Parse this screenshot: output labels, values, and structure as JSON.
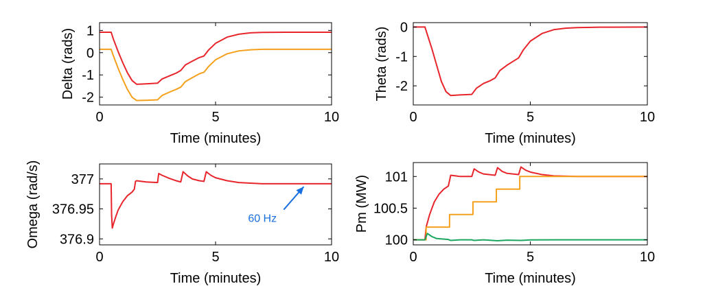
{
  "colors": {
    "red": "#e8242b",
    "orange": "#f5a01a",
    "green": "#1aa65e",
    "blue": "#1a6fe0",
    "axis": "#000000"
  },
  "chart_data": [
    {
      "type": "line",
      "xlabel": "Time (minutes)",
      "ylabel": "Delta (rads)",
      "xlim": [
        0,
        10
      ],
      "ylim": [
        -2.35,
        1.35
      ],
      "xticks": [
        0,
        5,
        10
      ],
      "yticks": [
        -2,
        -1,
        0,
        1
      ],
      "series": [
        {
          "color": "red",
          "points": [
            [
              0,
              0.92
            ],
            [
              0.5,
              0.92
            ],
            [
              0.6,
              0.6
            ],
            [
              0.8,
              0.05
            ],
            [
              1.0,
              -0.45
            ],
            [
              1.2,
              -0.9
            ],
            [
              1.4,
              -1.25
            ],
            [
              1.6,
              -1.42
            ],
            [
              2.0,
              -1.4
            ],
            [
              2.5,
              -1.37
            ],
            [
              2.7,
              -1.18
            ],
            [
              3.0,
              -1.05
            ],
            [
              3.3,
              -0.92
            ],
            [
              3.5,
              -0.8
            ],
            [
              3.7,
              -0.55
            ],
            [
              4.0,
              -0.38
            ],
            [
              4.3,
              -0.22
            ],
            [
              4.5,
              -0.15
            ],
            [
              4.7,
              0.12
            ],
            [
              5.0,
              0.42
            ],
            [
              5.5,
              0.7
            ],
            [
              6.0,
              0.83
            ],
            [
              6.5,
              0.89
            ],
            [
              7.0,
              0.91
            ],
            [
              8.0,
              0.92
            ],
            [
              10.0,
              0.92
            ]
          ]
        },
        {
          "color": "orange",
          "points": [
            [
              0,
              0.15
            ],
            [
              0.5,
              0.15
            ],
            [
              0.6,
              -0.15
            ],
            [
              0.8,
              -0.7
            ],
            [
              1.0,
              -1.2
            ],
            [
              1.2,
              -1.65
            ],
            [
              1.4,
              -2.0
            ],
            [
              1.6,
              -2.15
            ],
            [
              2.0,
              -2.14
            ],
            [
              2.5,
              -2.12
            ],
            [
              2.7,
              -1.92
            ],
            [
              3.0,
              -1.78
            ],
            [
              3.3,
              -1.65
            ],
            [
              3.5,
              -1.55
            ],
            [
              3.7,
              -1.3
            ],
            [
              4.0,
              -1.12
            ],
            [
              4.3,
              -0.95
            ],
            [
              4.5,
              -0.88
            ],
            [
              4.7,
              -0.62
            ],
            [
              5.0,
              -0.32
            ],
            [
              5.5,
              -0.05
            ],
            [
              6.0,
              0.08
            ],
            [
              6.5,
              0.13
            ],
            [
              7.0,
              0.15
            ],
            [
              8.0,
              0.15
            ],
            [
              10.0,
              0.15
            ]
          ]
        }
      ]
    },
    {
      "type": "line",
      "xlabel": "Time (minutes)",
      "ylabel": "Theta (rads)",
      "xlim": [
        0,
        10
      ],
      "ylim": [
        -2.65,
        0.15
      ],
      "xticks": [
        0,
        5,
        10
      ],
      "yticks": [
        -2,
        -1,
        0
      ],
      "series": [
        {
          "color": "red",
          "points": [
            [
              0,
              0
            ],
            [
              0.5,
              0
            ],
            [
              0.6,
              -0.25
            ],
            [
              0.8,
              -0.75
            ],
            [
              1.0,
              -1.3
            ],
            [
              1.2,
              -1.85
            ],
            [
              1.4,
              -2.2
            ],
            [
              1.6,
              -2.33
            ],
            [
              2.0,
              -2.31
            ],
            [
              2.5,
              -2.29
            ],
            [
              2.7,
              -2.08
            ],
            [
              3.0,
              -1.92
            ],
            [
              3.3,
              -1.82
            ],
            [
              3.5,
              -1.73
            ],
            [
              3.7,
              -1.48
            ],
            [
              4.0,
              -1.3
            ],
            [
              4.3,
              -1.15
            ],
            [
              4.5,
              -1.05
            ],
            [
              4.7,
              -0.78
            ],
            [
              5.0,
              -0.48
            ],
            [
              5.5,
              -0.22
            ],
            [
              6.0,
              -0.09
            ],
            [
              6.5,
              -0.04
            ],
            [
              7.0,
              -0.02
            ],
            [
              8.0,
              -0.005
            ],
            [
              10.0,
              0
            ]
          ]
        }
      ]
    },
    {
      "type": "line",
      "xlabel": "Time (minutes)",
      "ylabel": "Omega (rad/s)",
      "xlim": [
        0,
        10
      ],
      "ylim": [
        376.89,
        377.025
      ],
      "xticks": [
        0,
        5,
        10
      ],
      "yticks": [
        376.9,
        376.95,
        377
      ],
      "ytick_labels": [
        "376.9",
        "376.95",
        "377"
      ],
      "annotation": {
        "text": "60 Hz",
        "x": 6.4,
        "y": 376.935,
        "arrow_to": [
          8.8,
          376.987
        ]
      },
      "series": [
        {
          "color": "red",
          "points": [
            [
              0,
              376.992
            ],
            [
              0.5,
              376.992
            ],
            [
              0.52,
              376.94
            ],
            [
              0.55,
              376.918
            ],
            [
              0.6,
              376.925
            ],
            [
              0.7,
              376.937
            ],
            [
              0.8,
              376.948
            ],
            [
              1.0,
              376.962
            ],
            [
              1.2,
              376.972
            ],
            [
              1.4,
              376.978
            ],
            [
              1.5,
              376.983
            ],
            [
              1.55,
              376.996
            ],
            [
              1.6,
              376.997
            ],
            [
              2.0,
              376.995
            ],
            [
              2.5,
              376.994
            ],
            [
              2.55,
              377.009
            ],
            [
              2.7,
              377.006
            ],
            [
              3.0,
              377.001
            ],
            [
              3.3,
              376.997
            ],
            [
              3.5,
              376.995
            ],
            [
              3.6,
              377.012
            ],
            [
              3.8,
              377.005
            ],
            [
              4.0,
              377.0
            ],
            [
              4.3,
              376.997
            ],
            [
              4.5,
              376.996
            ],
            [
              4.6,
              377.012
            ],
            [
              4.8,
              377.006
            ],
            [
              5.0,
              377.002
            ],
            [
              5.5,
              376.997
            ],
            [
              6.0,
              376.994
            ],
            [
              6.5,
              376.993
            ],
            [
              7.0,
              376.992
            ],
            [
              8.0,
              376.992
            ],
            [
              10.0,
              376.992
            ]
          ]
        }
      ]
    },
    {
      "type": "line",
      "xlabel": "Time (minutes)",
      "ylabel": "Pm (MW)",
      "xlim": [
        0,
        10
      ],
      "ylim": [
        99.92,
        101.22
      ],
      "xticks": [
        0,
        5,
        10
      ],
      "yticks": [
        100,
        100.5,
        101
      ],
      "ytick_labels": [
        "100",
        "100.5",
        "101"
      ],
      "series": [
        {
          "color": "red",
          "points": [
            [
              0,
              100.0
            ],
            [
              0.5,
              100.0
            ],
            [
              0.55,
              100.2
            ],
            [
              0.7,
              100.4
            ],
            [
              0.9,
              100.6
            ],
            [
              1.1,
              100.72
            ],
            [
              1.3,
              100.8
            ],
            [
              1.5,
              100.85
            ],
            [
              1.6,
              101.02
            ],
            [
              1.8,
              101.01
            ],
            [
              2.0,
              101.0
            ],
            [
              2.5,
              101.0
            ],
            [
              2.6,
              101.12
            ],
            [
              2.8,
              101.07
            ],
            [
              3.0,
              101.04
            ],
            [
              3.5,
              101.02
            ],
            [
              3.6,
              101.14
            ],
            [
              3.8,
              101.08
            ],
            [
              4.0,
              101.05
            ],
            [
              4.5,
              101.03
            ],
            [
              4.6,
              101.15
            ],
            [
              4.8,
              101.1
            ],
            [
              5.0,
              101.07
            ],
            [
              5.5,
              101.03
            ],
            [
              6.0,
              101.01
            ],
            [
              7.0,
              101.0
            ],
            [
              10.0,
              101.0
            ]
          ]
        },
        {
          "color": "orange",
          "points": [
            [
              0,
              100.0
            ],
            [
              0.55,
              100.0
            ],
            [
              0.55,
              100.2
            ],
            [
              1.55,
              100.2
            ],
            [
              1.55,
              100.4
            ],
            [
              2.55,
              100.4
            ],
            [
              2.55,
              100.6
            ],
            [
              3.55,
              100.6
            ],
            [
              3.55,
              100.8
            ],
            [
              4.55,
              100.8
            ],
            [
              4.55,
              101.0
            ],
            [
              10.0,
              101.0
            ]
          ]
        },
        {
          "color": "green",
          "points": [
            [
              0,
              100.0
            ],
            [
              0.5,
              100.0
            ],
            [
              0.6,
              100.1
            ],
            [
              0.8,
              100.05
            ],
            [
              1.0,
              100.02
            ],
            [
              1.5,
              100.005
            ],
            [
              1.6,
              99.99
            ],
            [
              2.0,
              100.0
            ],
            [
              2.5,
              100.0
            ],
            [
              2.6,
              99.99
            ],
            [
              3.0,
              100.0
            ],
            [
              3.6,
              99.985
            ],
            [
              4.0,
              99.995
            ],
            [
              4.6,
              99.99
            ],
            [
              5.0,
              99.998
            ],
            [
              6.0,
              100.0
            ],
            [
              10.0,
              100.0
            ]
          ]
        }
      ]
    }
  ]
}
